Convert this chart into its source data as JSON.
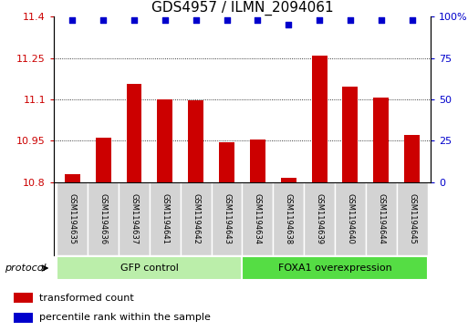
{
  "title": "GDS4957 / ILMN_2094061",
  "samples": [
    "GSM1194635",
    "GSM1194636",
    "GSM1194637",
    "GSM1194641",
    "GSM1194642",
    "GSM1194643",
    "GSM1194634",
    "GSM1194638",
    "GSM1194639",
    "GSM1194640",
    "GSM1194644",
    "GSM1194645"
  ],
  "bar_values": [
    10.83,
    10.96,
    11.155,
    11.1,
    11.095,
    10.945,
    10.955,
    10.815,
    11.26,
    11.145,
    11.105,
    10.97
  ],
  "percentile_values": [
    98,
    98,
    98,
    98,
    98,
    98,
    98,
    95,
    98,
    98,
    98,
    98
  ],
  "ylim_left": [
    10.8,
    11.4
  ],
  "ylim_right": [
    0,
    100
  ],
  "yticks_left": [
    10.8,
    10.95,
    11.1,
    11.25,
    11.4
  ],
  "yticks_right": [
    0,
    25,
    50,
    75,
    100
  ],
  "bar_color": "#cc0000",
  "dot_color": "#0000cc",
  "bar_baseline": 10.8,
  "grid_values": [
    10.95,
    11.1,
    11.25
  ],
  "group_labels": [
    "GFP control",
    "FOXA1 overexpression"
  ],
  "group_ranges": [
    [
      0,
      6
    ],
    [
      6,
      12
    ]
  ],
  "group_colors": [
    "#aaddaa",
    "#44cc44"
  ],
  "legend_items": [
    {
      "label": "transformed count",
      "color": "#cc0000"
    },
    {
      "label": "percentile rank within the sample",
      "color": "#0000cc"
    }
  ],
  "protocol_label": "protocol",
  "title_fontsize": 11,
  "tick_fontsize": 8
}
